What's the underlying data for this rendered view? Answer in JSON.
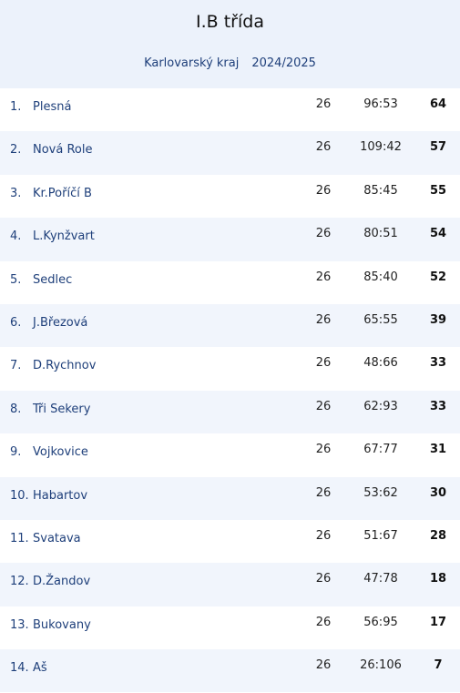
{
  "header": {
    "title": "I.B třída",
    "region": "Karlovarský kraj",
    "season": "2024/2025"
  },
  "table": {
    "rows": [
      [
        "1.",
        "Plesná",
        26,
        "96:53",
        64
      ],
      [
        "2.",
        "Nová Role",
        26,
        "109:42",
        57
      ],
      [
        "3.",
        "Kr.Poříčí B",
        26,
        "85:45",
        55
      ],
      [
        "4.",
        "L.Kynžvart",
        26,
        "80:51",
        54
      ],
      [
        "5.",
        "Sedlec",
        26,
        "85:40",
        52
      ],
      [
        "6.",
        "J.Březová",
        26,
        "65:55",
        39
      ],
      [
        "7.",
        "D.Rychnov",
        26,
        "48:66",
        33
      ],
      [
        "8.",
        "Tři Sekery",
        26,
        "62:93",
        33
      ],
      [
        "9.",
        "Vojkovice",
        26,
        "67:77",
        31
      ],
      [
        "10.",
        "Habartov",
        26,
        "53:62",
        30
      ],
      [
        "11.",
        "Svatava",
        26,
        "51:67",
        28
      ],
      [
        "12.",
        "D.Žandov",
        26,
        "47:78",
        18
      ],
      [
        "13.",
        "Bukovany",
        26,
        "56:95",
        17
      ],
      [
        "14.",
        "Aš",
        26,
        "26:106",
        7
      ]
    ]
  }
}
